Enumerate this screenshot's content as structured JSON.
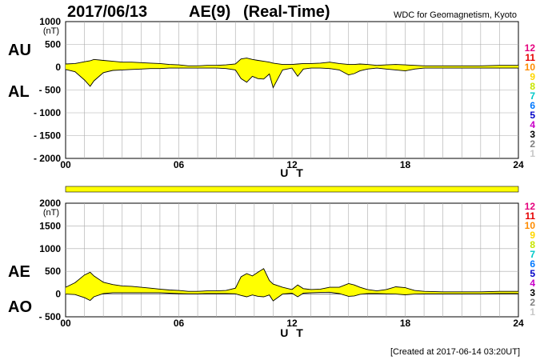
{
  "header": {
    "date": "2017/06/13",
    "index": "AE(9)",
    "mode": "(Real-Time)",
    "source": "WDC for Geomagnetism, Kyoto"
  },
  "footer": {
    "created": "[Created at 2017-06-14 03:20UT]"
  },
  "legend": {
    "labels": [
      "12",
      "11",
      "10",
      "9",
      "8",
      "7",
      "6",
      "5",
      "4",
      "3",
      "2",
      "1"
    ],
    "colors": [
      "#e6007e",
      "#e60000",
      "#ff8c00",
      "#ffd700",
      "#c8e600",
      "#00c8c8",
      "#0078ff",
      "#0000c8",
      "#c800c8",
      "#000000",
      "#808080",
      "#c8c8c8"
    ]
  },
  "colors": {
    "fill": "#ffff00",
    "line": "#000000",
    "grid": "#aaaaaa",
    "stationbar": "#ffff00"
  },
  "chart_data": [
    {
      "type": "area",
      "upper_label": "AU",
      "lower_label": "AL",
      "unit": "(nT)",
      "xlabel": "U T",
      "xlim": [
        0,
        24
      ],
      "ylim": [
        -2000,
        1000
      ],
      "x_ticks": [
        0,
        6,
        12,
        18,
        24
      ],
      "x_tick_labels": [
        "00",
        "06",
        "12",
        "18",
        "24"
      ],
      "y_ticks": [
        1000,
        500,
        0,
        -500,
        -1000,
        -1500,
        -2000
      ],
      "y_tick_labels": [
        "1000",
        "500",
        "0",
        "- 500",
        "- 1000",
        "- 1500",
        "- 2000"
      ],
      "x": [
        0,
        0.5,
        1,
        1.3,
        1.5,
        2,
        2.5,
        3,
        3.5,
        4,
        4.5,
        5,
        5.5,
        6,
        6.5,
        7,
        7.5,
        8,
        8.5,
        9,
        9.3,
        9.6,
        9.9,
        10.2,
        10.5,
        10.8,
        11,
        11.5,
        12,
        12.3,
        12.6,
        13,
        13.5,
        14,
        14.5,
        15,
        15.3,
        15.6,
        16,
        16.5,
        17,
        17.5,
        18,
        18.5,
        19,
        20,
        21,
        22,
        23,
        24
      ],
      "series": [
        {
          "name": "AU",
          "values": [
            70,
            80,
            120,
            140,
            170,
            150,
            130,
            110,
            110,
            100,
            90,
            80,
            60,
            50,
            30,
            30,
            40,
            40,
            50,
            70,
            180,
            200,
            170,
            150,
            130,
            110,
            90,
            60,
            60,
            70,
            80,
            80,
            90,
            110,
            80,
            60,
            60,
            70,
            60,
            40,
            50,
            60,
            50,
            40,
            30,
            30,
            30,
            30,
            40,
            40
          ]
        },
        {
          "name": "AL",
          "values": [
            -50,
            -100,
            -280,
            -420,
            -300,
            -120,
            -70,
            -60,
            -50,
            -40,
            -30,
            -30,
            -20,
            -20,
            -20,
            -20,
            -20,
            -20,
            -30,
            -60,
            -250,
            -330,
            -200,
            -250,
            -260,
            -150,
            -450,
            -60,
            -20,
            -200,
            -40,
            -20,
            -20,
            -30,
            -60,
            -170,
            -140,
            -80,
            -40,
            -20,
            -40,
            -60,
            -80,
            -40,
            -20,
            -20,
            -20,
            -20,
            -20,
            -20
          ]
        }
      ]
    },
    {
      "type": "area",
      "upper_label": "AE",
      "lower_label": "AO",
      "unit": "(nT)",
      "xlabel": "U T",
      "xlim": [
        0,
        24
      ],
      "ylim": [
        -500,
        2000
      ],
      "x_ticks": [
        0,
        6,
        12,
        18,
        24
      ],
      "x_tick_labels": [
        "00",
        "06",
        "12",
        "18",
        "24"
      ],
      "y_ticks": [
        2000,
        1500,
        1000,
        500,
        0,
        -500
      ],
      "y_tick_labels": [
        "2000",
        "1500",
        "1000",
        "500",
        "0",
        "- 500"
      ],
      "x": [
        0,
        0.5,
        1,
        1.3,
        1.5,
        2,
        2.5,
        3,
        3.5,
        4,
        4.5,
        5,
        5.5,
        6,
        6.5,
        7,
        7.5,
        8,
        8.5,
        9,
        9.3,
        9.6,
        9.9,
        10.2,
        10.5,
        10.8,
        11,
        11.5,
        12,
        12.3,
        12.6,
        13,
        13.5,
        14,
        14.5,
        15,
        15.3,
        15.6,
        16,
        16.5,
        17,
        17.5,
        18,
        18.5,
        19,
        20,
        21,
        22,
        23,
        24
      ],
      "series": [
        {
          "name": "AE",
          "values": [
            150,
            250,
            420,
            480,
            400,
            260,
            210,
            180,
            170,
            150,
            130,
            110,
            90,
            80,
            60,
            60,
            70,
            70,
            80,
            130,
            380,
            450,
            400,
            480,
            560,
            300,
            220,
            150,
            100,
            200,
            120,
            100,
            110,
            150,
            150,
            230,
            200,
            150,
            100,
            70,
            100,
            160,
            140,
            80,
            60,
            50,
            50,
            50,
            60,
            60
          ]
        },
        {
          "name": "AO",
          "values": [
            0,
            -10,
            -80,
            -140,
            -60,
            10,
            30,
            30,
            30,
            30,
            30,
            30,
            20,
            10,
            5,
            5,
            10,
            10,
            10,
            5,
            -30,
            -60,
            -20,
            -50,
            -60,
            -20,
            -150,
            0,
            20,
            -60,
            20,
            30,
            35,
            40,
            10,
            -50,
            -40,
            -5,
            10,
            10,
            5,
            0,
            -15,
            0,
            5,
            5,
            5,
            5,
            10,
            10
          ]
        }
      ]
    }
  ]
}
